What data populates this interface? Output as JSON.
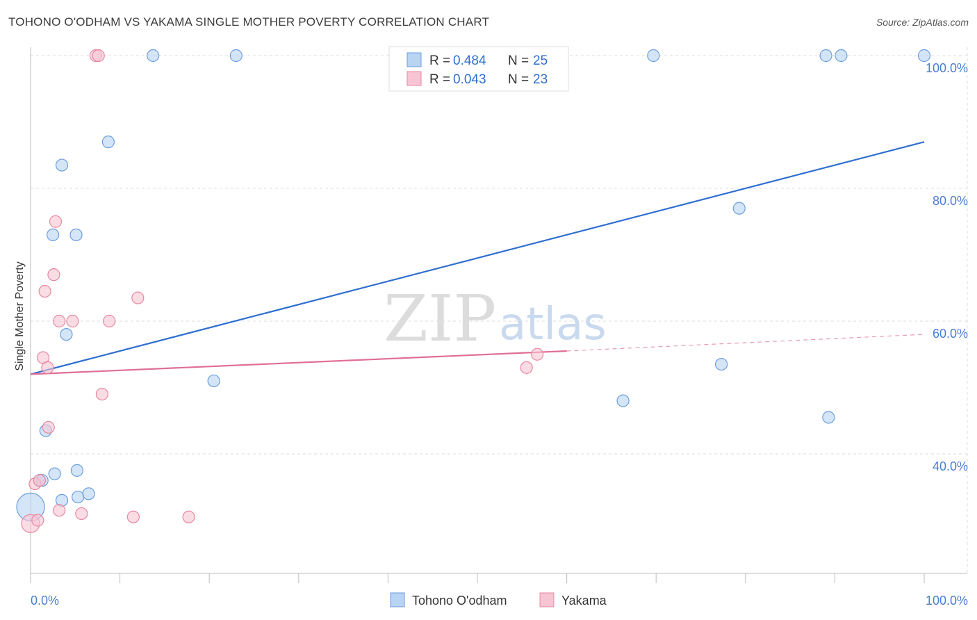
{
  "title": "TOHONO O'ODHAM VS YAKAMA SINGLE MOTHER POVERTY CORRELATION CHART",
  "source": "Source: ZipAtlas.com",
  "watermark": {
    "zip": "ZIP",
    "atlas": "atlas"
  },
  "colors": {
    "blue_fill": "#b9d3f3",
    "blue_stroke": "#6a9ede",
    "blue_line": "#2e6fd0",
    "pink_fill": "#f7c4d4",
    "pink_stroke": "#e8879f",
    "pink_line": "#e06e96",
    "grid": "#dcdcdc",
    "tick_text": "#4a7fd0"
  },
  "legend": {
    "rows": [
      {
        "series": "Tohono O'odham",
        "r_label": "R = ",
        "r_value": "0.484",
        "n_label": "N = ",
        "n_value": "25"
      },
      {
        "series": "Yakama",
        "r_label": "R = ",
        "r_value": "0.043",
        "n_label": "N = ",
        "n_value": "23"
      }
    ]
  },
  "chart_data": {
    "type": "scatter",
    "title": "TOHONO O'ODHAM VS YAKAMA SINGLE MOTHER POVERTY CORRELATION CHART",
    "xlabel": "",
    "ylabel": "Single Mother Poverty",
    "xlim": [
      0,
      100
    ],
    "ylim": [
      20,
      102
    ],
    "x_tick_labels": [
      "0.0%",
      "100.0%"
    ],
    "y_ticks": [
      40,
      60,
      80,
      100
    ],
    "y_tick_labels": [
      "40.0%",
      "60.0%",
      "80.0%",
      "100.0%"
    ],
    "legend_position": "bottom-center",
    "series": [
      {
        "name": "Tohono O'odham",
        "color": "blue",
        "points": [
          {
            "x": 0.0,
            "y": 32.0,
            "size": 20
          },
          {
            "x": 1.0,
            "y": 36.0
          },
          {
            "x": 1.3,
            "y": 36.0
          },
          {
            "x": 1.7,
            "y": 43.5
          },
          {
            "x": 2.7,
            "y": 37.0
          },
          {
            "x": 3.5,
            "y": 33.0
          },
          {
            "x": 5.3,
            "y": 33.5
          },
          {
            "x": 6.5,
            "y": 34.0
          },
          {
            "x": 5.2,
            "y": 37.5
          },
          {
            "x": 4.0,
            "y": 58.0
          },
          {
            "x": 2.5,
            "y": 73.0
          },
          {
            "x": 5.1,
            "y": 73.0
          },
          {
            "x": 3.5,
            "y": 83.5
          },
          {
            "x": 8.7,
            "y": 87.0
          },
          {
            "x": 13.7,
            "y": 100.0
          },
          {
            "x": 23.0,
            "y": 100.0
          },
          {
            "x": 20.5,
            "y": 51.0
          },
          {
            "x": 69.7,
            "y": 100.0
          },
          {
            "x": 79.3,
            "y": 77.0
          },
          {
            "x": 66.3,
            "y": 48.0
          },
          {
            "x": 77.3,
            "y": 53.5
          },
          {
            "x": 89.0,
            "y": 100.0
          },
          {
            "x": 90.7,
            "y": 100.0
          },
          {
            "x": 89.3,
            "y": 45.5
          },
          {
            "x": 100.0,
            "y": 100.0
          }
        ],
        "trend": {
          "x0": 0,
          "y0": 52.0,
          "x1": 100,
          "y1": 87.0
        }
      },
      {
        "name": "Yakama",
        "color": "pink",
        "points": [
          {
            "x": 0.0,
            "y": 29.5,
            "size": 13
          },
          {
            "x": 0.5,
            "y": 35.5
          },
          {
            "x": 0.8,
            "y": 30.0
          },
          {
            "x": 1.0,
            "y": 36.0
          },
          {
            "x": 2.0,
            "y": 44.0
          },
          {
            "x": 1.4,
            "y": 54.5
          },
          {
            "x": 1.9,
            "y": 53.0
          },
          {
            "x": 1.6,
            "y": 64.5
          },
          {
            "x": 2.6,
            "y": 67.0
          },
          {
            "x": 2.8,
            "y": 75.0
          },
          {
            "x": 3.2,
            "y": 60.0
          },
          {
            "x": 4.7,
            "y": 60.0
          },
          {
            "x": 8.8,
            "y": 60.0
          },
          {
            "x": 12.0,
            "y": 63.5
          },
          {
            "x": 8.0,
            "y": 49.0
          },
          {
            "x": 3.2,
            "y": 31.5
          },
          {
            "x": 5.7,
            "y": 31.0
          },
          {
            "x": 11.5,
            "y": 30.5
          },
          {
            "x": 17.7,
            "y": 30.5
          },
          {
            "x": 7.3,
            "y": 100.0
          },
          {
            "x": 7.6,
            "y": 100.0
          },
          {
            "x": 55.5,
            "y": 53.0
          },
          {
            "x": 56.7,
            "y": 55.0
          }
        ],
        "trend": {
          "x0": 0,
          "y0": 52.0,
          "x1": 60,
          "y1": 55.5,
          "dashed_to_x": 100,
          "dashed_to_y": 58.0
        }
      }
    ]
  }
}
